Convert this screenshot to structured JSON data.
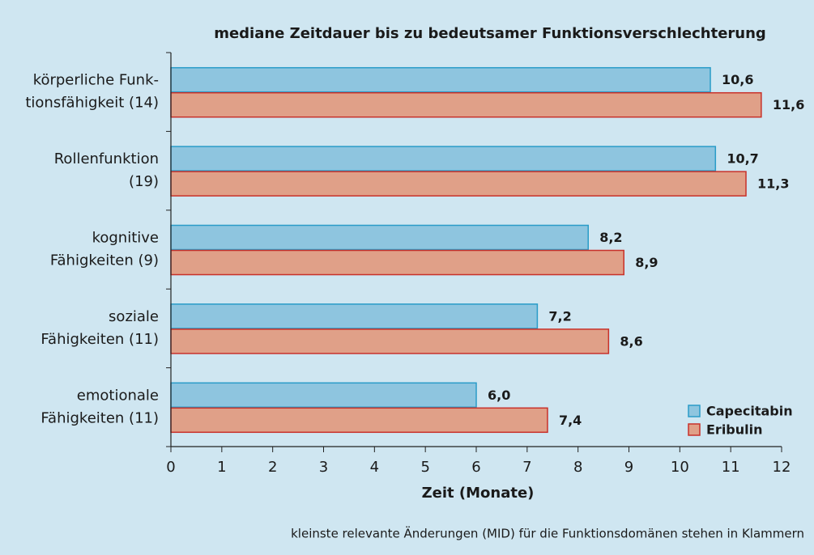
{
  "chart_data": {
    "type": "barh",
    "title": "mediane Zeitdauer bis zu bedeutsamer Funktionsverschlechterung",
    "xlabel": "Zeit (Monate)",
    "footnote": "kleinste relevante Änderungen (MID) für die Funktionsdomänen stehen in Klammern",
    "categories": [
      [
        "körperliche Funk-",
        "tionsfähigkeit (14)"
      ],
      [
        "Rollenfunktion",
        "(19)"
      ],
      [
        "kognitive",
        "Fähigkeiten (9)"
      ],
      [
        "soziale",
        "Fähigkeiten (11)"
      ],
      [
        "emotionale",
        "Fähigkeiten (11)"
      ]
    ],
    "series": [
      {
        "name": "Capecitabin",
        "color": "#8ec5df",
        "edge": "#2a9cc8",
        "values": [
          10.6,
          10.7,
          8.2,
          7.2,
          6.0
        ],
        "value_labels": [
          "10,6",
          "10,7",
          "8,2",
          "7,2",
          "6,0"
        ]
      },
      {
        "name": "Eribulin",
        "color": "#e0a088",
        "edge": "#c8312a",
        "values": [
          11.6,
          11.3,
          8.9,
          8.6,
          7.4
        ],
        "value_labels": [
          "11,6",
          "11,3",
          "8,9",
          "8,6",
          "7,4"
        ]
      }
    ],
    "xlim": [
      0,
      12
    ],
    "xticks": [
      0,
      1,
      2,
      3,
      4,
      5,
      6,
      7,
      8,
      9,
      10,
      11,
      12
    ],
    "legend": "lower right"
  }
}
